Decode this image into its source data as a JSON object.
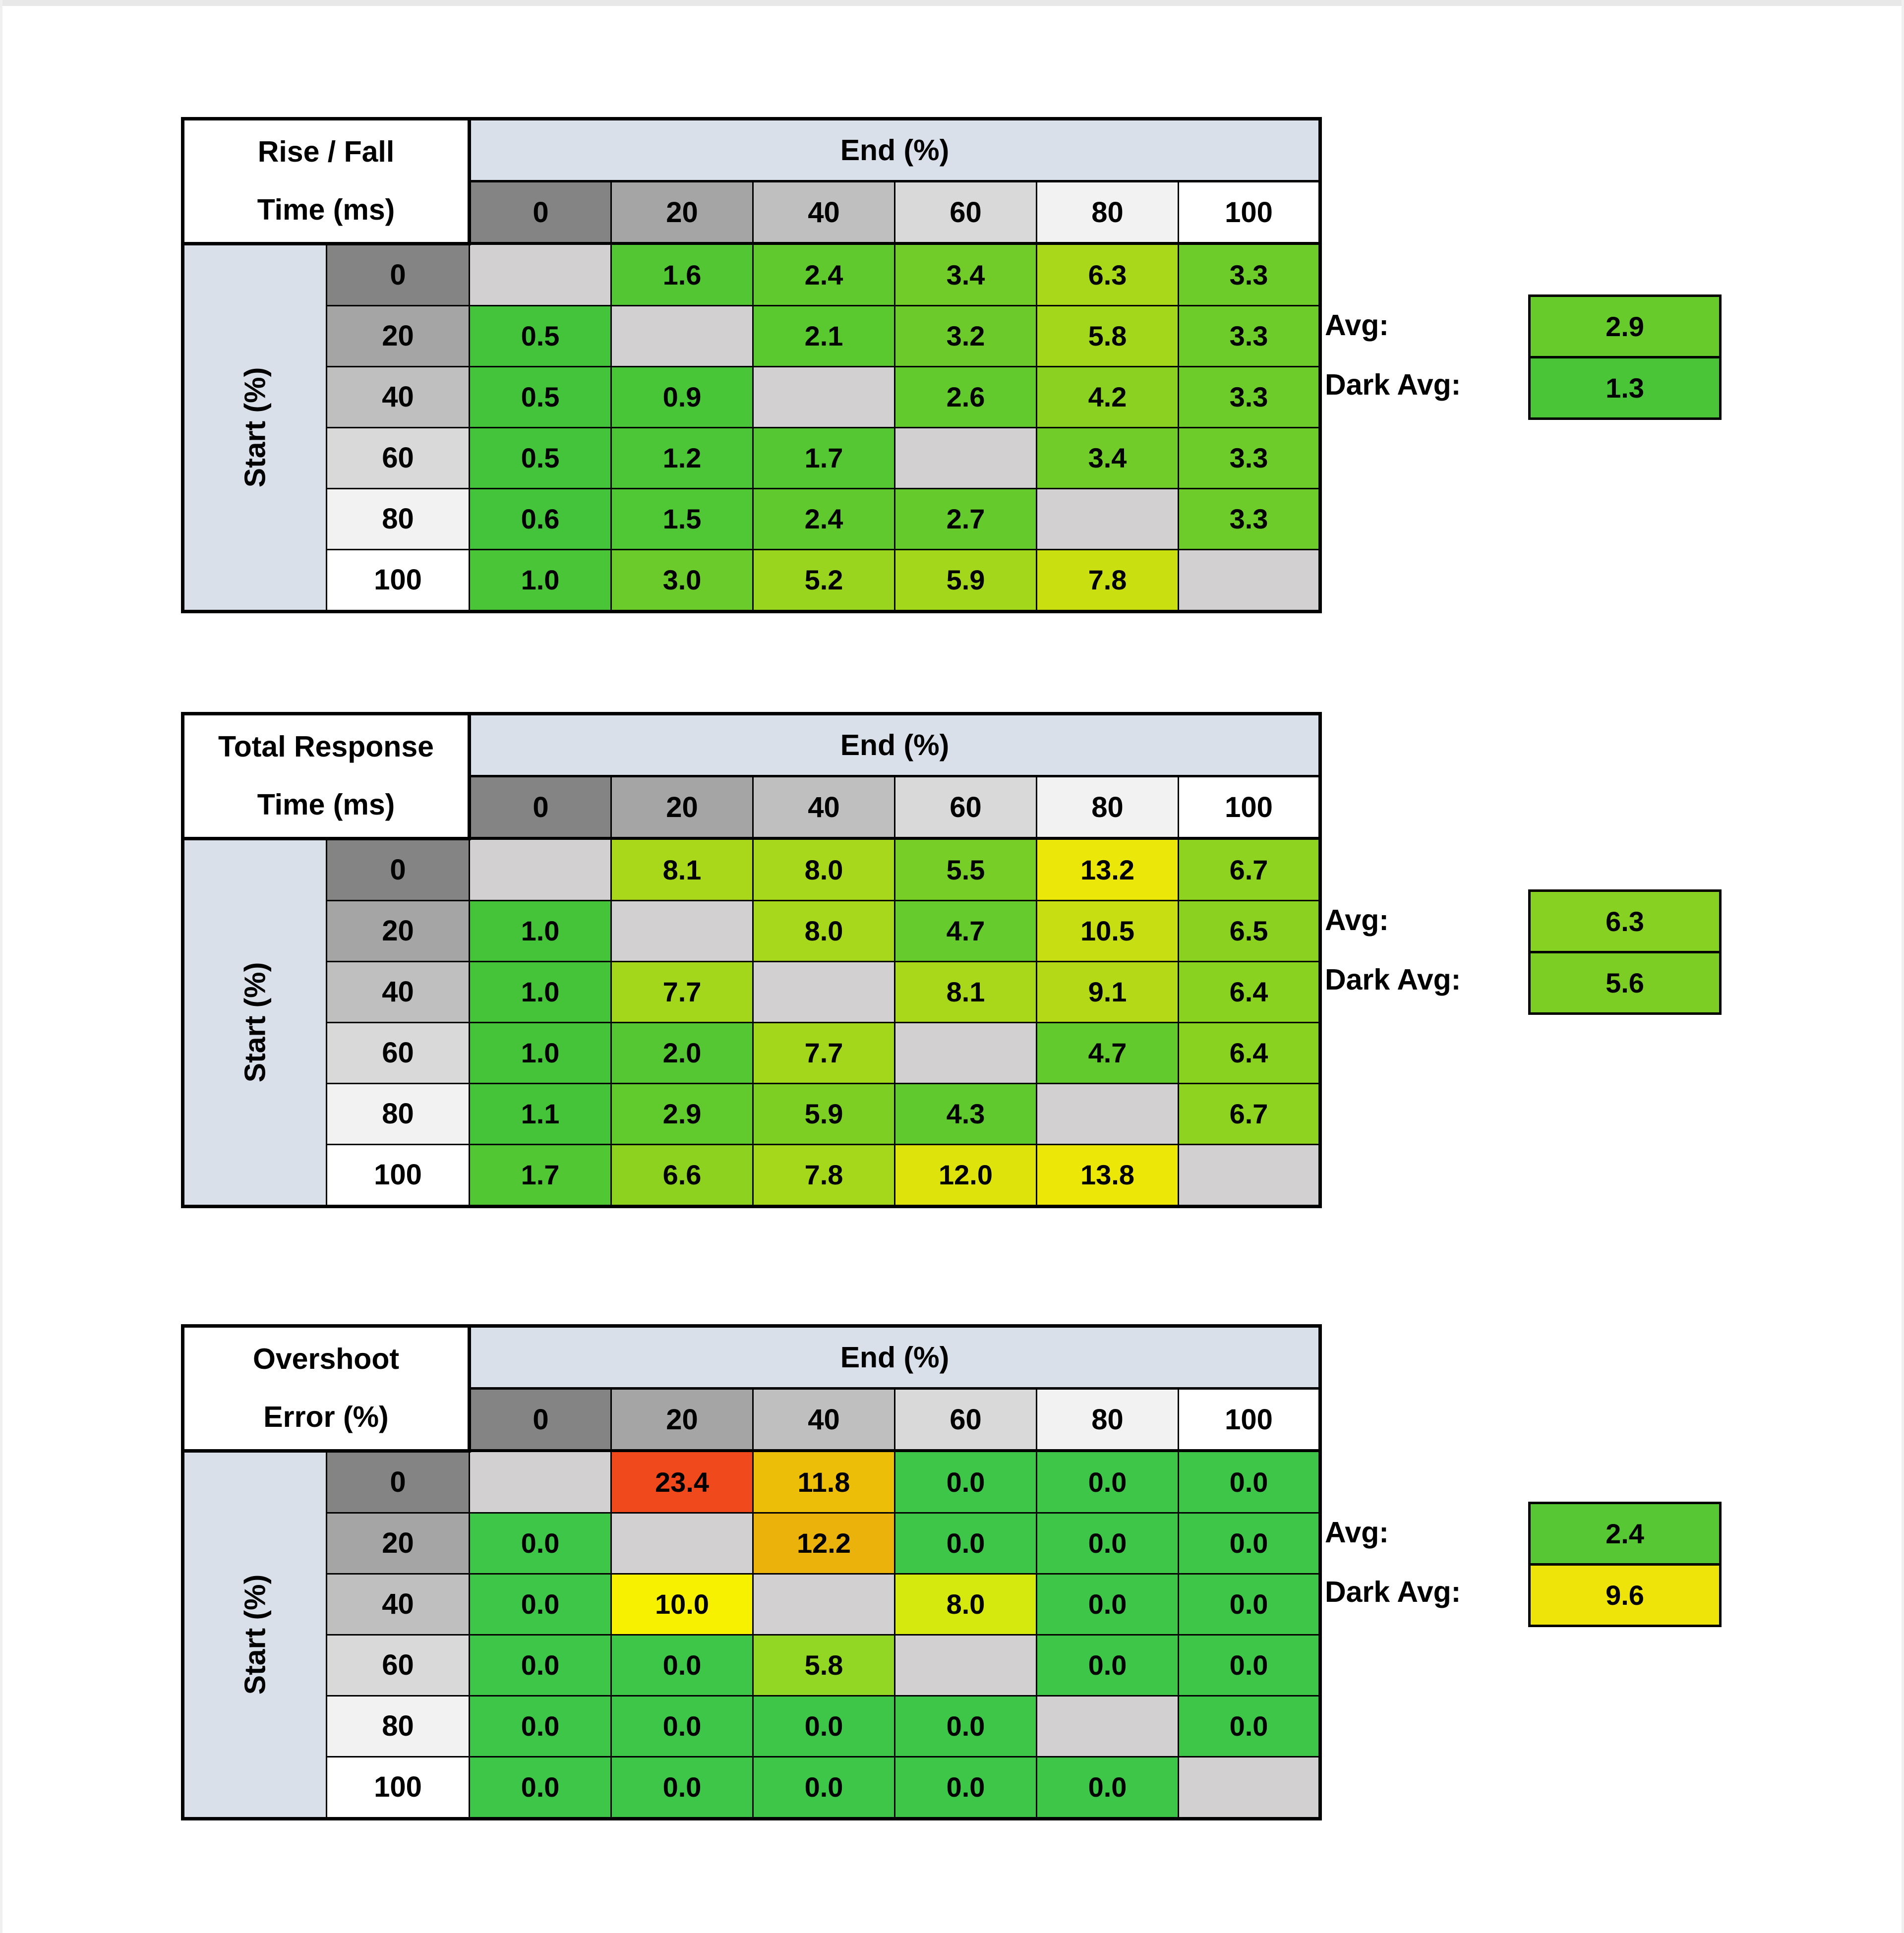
{
  "page": {
    "background": "#FFFFFF",
    "top_strip_color": "#E8E8E8",
    "edge_strip_color": "#EFEFEF"
  },
  "style": {
    "header_band_color": "#DAE0E9",
    "header_shades": [
      "#848484",
      "#A6A5A5",
      "#BFBFBF",
      "#D9D9D9",
      "#F2F2F2",
      "#FFFFFF"
    ],
    "blank_cell_color": "#D2D0D0",
    "grid_color": "#000000",
    "text_color": "#000000"
  },
  "chart_data": [
    {
      "type": "heatmap",
      "name": "rise-fall-time",
      "title": "Rise / Fall Time (ms)",
      "title_lines": [
        "Rise / Fall",
        "Time (ms)"
      ],
      "x_group_label": "End (%)",
      "y_group_label": "Start (%)",
      "x_categories": [
        "0",
        "20",
        "40",
        "60",
        "80",
        "100"
      ],
      "y_categories": [
        "0",
        "20",
        "40",
        "60",
        "80",
        "100"
      ],
      "values": [
        [
          null,
          1.6,
          2.4,
          3.4,
          6.3,
          3.3
        ],
        [
          0.5,
          null,
          2.1,
          3.2,
          5.8,
          3.3
        ],
        [
          0.5,
          0.9,
          null,
          2.6,
          4.2,
          3.3
        ],
        [
          0.5,
          1.2,
          1.7,
          null,
          3.4,
          3.3
        ],
        [
          0.6,
          1.5,
          2.4,
          2.7,
          null,
          3.3
        ],
        [
          1.0,
          3.0,
          5.2,
          5.9,
          7.8,
          null
        ]
      ],
      "cell_colors": [
        [
          null,
          "#52C733",
          "#60C92E",
          "#71CC29",
          "#A9D81A",
          "#6ECC2A"
        ],
        [
          "#43C43B",
          null,
          "#5AC930",
          "#6CCB2B",
          "#A2D71C",
          "#6ECC2A"
        ],
        [
          "#43C43B",
          "#49C538",
          null,
          "#63CA2D",
          "#8BD122",
          "#6ECC2A"
        ],
        [
          "#43C43B",
          "#4CC637",
          "#55C733",
          null,
          "#71CC29",
          "#6ECC2A"
        ],
        [
          "#44C43A",
          "#50C735",
          "#60C92E",
          "#65CA2C",
          null,
          "#6ECC2A"
        ],
        [
          "#4AC538",
          "#6ACB2B",
          "#99D51E",
          "#A3D71C",
          "#C9DF10",
          null
        ]
      ],
      "avg": {
        "label": "Avg:",
        "value": "2.9",
        "color": "#68CB2C"
      },
      "dark_avg": {
        "label": "Dark Avg:",
        "value": "1.3",
        "color": "#4AC537"
      }
    },
    {
      "type": "heatmap",
      "name": "total-response-time",
      "title": "Total Response Time (ms)",
      "title_lines": [
        "Total Response",
        "Time (ms)"
      ],
      "x_group_label": "End (%)",
      "y_group_label": "Start (%)",
      "x_categories": [
        "0",
        "20",
        "40",
        "60",
        "80",
        "100"
      ],
      "y_categories": [
        "0",
        "20",
        "40",
        "60",
        "80",
        "100"
      ],
      "values": [
        [
          null,
          8.1,
          8.0,
          5.5,
          13.2,
          6.7
        ],
        [
          1.0,
          null,
          8.0,
          4.7,
          10.5,
          6.5
        ],
        [
          1.0,
          7.7,
          null,
          8.1,
          9.1,
          6.4
        ],
        [
          1.0,
          2.0,
          7.7,
          null,
          4.7,
          6.4
        ],
        [
          1.1,
          2.9,
          5.9,
          4.3,
          null,
          6.7
        ],
        [
          1.7,
          6.6,
          7.8,
          12.0,
          13.8,
          null
        ]
      ],
      "cell_colors": [
        [
          null,
          "#A9D81A",
          "#A8D81B",
          "#77CE26",
          "#EBE708",
          "#8ED31F"
        ],
        [
          "#45C43A",
          null,
          "#A8D81B",
          "#66CB2C",
          "#C6DE12",
          "#8BD220"
        ],
        [
          "#45C43A",
          "#A3D71C",
          null,
          "#A9D81A",
          "#B4DA17",
          "#8AD220"
        ],
        [
          "#45C43A",
          "#55C733",
          "#A3D71C",
          null,
          "#63CA2D",
          "#8AD220"
        ],
        [
          "#46C439",
          "#61CA2D",
          "#7DCF24",
          "#5FC92E",
          null,
          "#8ED31F"
        ],
        [
          "#51C734",
          "#8DD21F",
          "#A5D71B",
          "#DEE40B",
          "#ECE707",
          null
        ]
      ],
      "avg": {
        "label": "Avg:",
        "value": "6.3",
        "color": "#86D121"
      },
      "dark_avg": {
        "label": "Dark Avg:",
        "value": "5.6",
        "color": "#7CCE25"
      }
    },
    {
      "type": "heatmap",
      "name": "overshoot-error",
      "title": "Overshoot Error (%)",
      "title_lines": [
        "Overshoot",
        "Error (%)"
      ],
      "x_group_label": "End (%)",
      "y_group_label": "Start (%)",
      "x_categories": [
        "0",
        "20",
        "40",
        "60",
        "80",
        "100"
      ],
      "y_categories": [
        "0",
        "20",
        "40",
        "60",
        "80",
        "100"
      ],
      "values": [
        [
          null,
          23.4,
          11.8,
          0.0,
          0.0,
          0.0
        ],
        [
          0.0,
          null,
          12.2,
          0.0,
          0.0,
          0.0
        ],
        [
          0.0,
          10.0,
          null,
          8.0,
          0.0,
          0.0
        ],
        [
          0.0,
          0.0,
          5.8,
          null,
          0.0,
          0.0
        ],
        [
          0.0,
          0.0,
          0.0,
          0.0,
          null,
          0.0
        ],
        [
          0.0,
          0.0,
          0.0,
          0.0,
          0.0,
          null
        ]
      ],
      "cell_colors": [
        [
          null,
          "#F04A1C",
          "#EDBE08",
          "#3DC648",
          "#3DC648",
          "#3DC648"
        ],
        [
          "#3DC648",
          null,
          "#EAB20A",
          "#3DC648",
          "#3DC648",
          "#3DC648"
        ],
        [
          "#3DC648",
          "#F7F100",
          null,
          "#D6E90F",
          "#3DC648",
          "#3DC648"
        ],
        [
          "#3DC648",
          "#3DC648",
          "#92D723",
          null,
          "#3DC648",
          "#3DC648"
        ],
        [
          "#3DC648",
          "#3DC648",
          "#3DC648",
          "#3DC648",
          null,
          "#3DC648"
        ],
        [
          "#3DC648",
          "#3DC648",
          "#3DC648",
          "#3DC648",
          "#3DC648",
          null
        ]
      ],
      "avg": {
        "label": "Avg:",
        "value": "2.4",
        "color": "#57C733"
      },
      "dark_avg": {
        "label": "Dark Avg:",
        "value": "9.6",
        "color": "#EEE40A"
      }
    }
  ]
}
